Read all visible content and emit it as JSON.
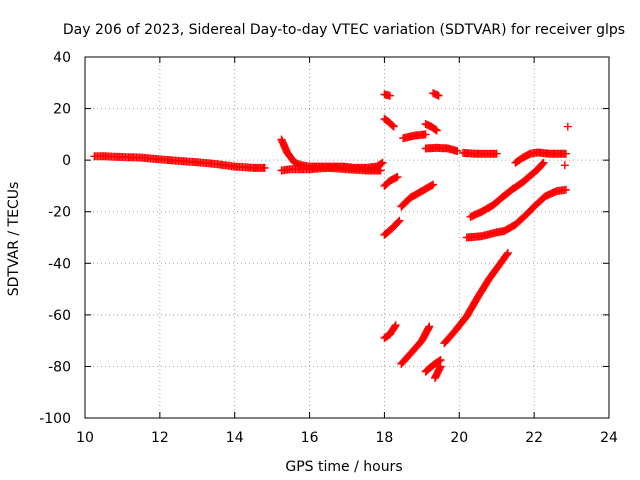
{
  "chart_data": {
    "type": "scatter",
    "title": "Day 206 of 2023, Sidereal Day-to-day VTEC variation (SDTVAR) for receiver glps",
    "xlabel": "GPS time / hours",
    "ylabel": "SDTVAR / TECUs",
    "xlim": [
      10,
      24
    ],
    "ylim": [
      -100,
      40
    ],
    "x_ticks": [
      10,
      12,
      14,
      16,
      18,
      20,
      22,
      24
    ],
    "y_ticks": [
      -100,
      -80,
      -60,
      -40,
      -20,
      0,
      20,
      40
    ],
    "x_tick_labels": [
      "10",
      "12",
      "14",
      "16",
      "18",
      "20",
      "22",
      "24"
    ],
    "y_tick_labels": [
      "-100",
      "-80",
      "-60",
      "-40",
      "-20",
      "0",
      "20",
      "40"
    ],
    "grid": true,
    "legend": "none",
    "marker": "plus",
    "color": "#ff0000",
    "series": [
      {
        "segments": [
          {
            "x": [
              10.25,
              10.5,
              11.0,
              11.5,
              12.0,
              12.5,
              13.0,
              13.5,
              14.0,
              14.5,
              14.8
            ],
            "y": [
              1.5,
              1.5,
              1.2,
              1.0,
              0.3,
              -0.3,
              -0.8,
              -1.5,
              -2.5,
              -3.0,
              -3.0
            ]
          },
          {
            "x": [
              15.25,
              15.4,
              15.6,
              15.8,
              16.0,
              16.3,
              16.6,
              16.9,
              17.2,
              17.5,
              17.8,
              17.95
            ],
            "y": [
              8.0,
              3.0,
              -1.0,
              -2.0,
              -2.5,
              -2.5,
              -2.5,
              -2.5,
              -3.0,
              -3.0,
              -2.5,
              -1.0
            ]
          },
          {
            "x": [
              15.25,
              15.5,
              16.0,
              16.5,
              17.0,
              17.5,
              17.9
            ],
            "y": [
              -4.0,
              -3.5,
              -3.5,
              -3.0,
              -3.5,
              -4.0,
              -4.0
            ]
          },
          {
            "x": [
              18.0,
              18.15
            ],
            "y": [
              25.5,
              25.0
            ]
          },
          {
            "x": [
              18.0,
              18.1,
              18.25
            ],
            "y": [
              16.0,
              15.0,
              13.0
            ]
          },
          {
            "x": [
              18.0,
              18.15,
              18.35
            ],
            "y": [
              -10.0,
              -8.0,
              -6.5
            ]
          },
          {
            "x": [
              18.0,
              18.2,
              18.4
            ],
            "y": [
              -29.0,
              -26.5,
              -23.5
            ]
          },
          {
            "x": [
              18.0,
              18.15,
              18.3
            ],
            "y": [
              -69.0,
              -67.5,
              -64.0
            ]
          },
          {
            "x": [
              18.45,
              18.7,
              19.0,
              19.3
            ],
            "y": [
              -18.0,
              -14.5,
              -12.0,
              -9.5
            ]
          },
          {
            "x": [
              18.45,
              18.7,
              19.0,
              19.2
            ],
            "y": [
              -79.0,
              -75.0,
              -70.0,
              -64.5
            ]
          },
          {
            "x": [
              18.5,
              18.8,
              19.1
            ],
            "y": [
              8.5,
              9.5,
              10.0
            ]
          },
          {
            "x": [
              19.1,
              19.25,
              19.4
            ],
            "y": [
              14.0,
              13.0,
              11.5
            ]
          },
          {
            "x": [
              19.3,
              19.45
            ],
            "y": [
              26.0,
              25.0
            ]
          },
          {
            "x": [
              19.1,
              19.4,
              19.7,
              19.95
            ],
            "y": [
              4.5,
              4.8,
              4.5,
              3.5
            ]
          },
          {
            "x": [
              20.1,
              20.4,
              20.8,
              21.0
            ],
            "y": [
              2.8,
              2.5,
              2.5,
              2.5
            ]
          },
          {
            "x": [
              19.1,
              19.3,
              19.5
            ],
            "y": [
              -82.0,
              -79.5,
              -77.5
            ]
          },
          {
            "x": [
              19.35,
              19.5
            ],
            "y": [
              -84.5,
              -80.0
            ]
          },
          {
            "x": [
              19.6,
              19.9,
              20.2,
              20.5,
              20.8,
              21.1,
              21.3
            ],
            "y": [
              -71.0,
              -66.0,
              -60.5,
              -53.0,
              -46.0,
              -40.0,
              -36.0
            ]
          },
          {
            "x": [
              20.3,
              20.6,
              20.9,
              21.1,
              21.4,
              21.7,
              21.9,
              22.1,
              22.25
            ],
            "y": [
              -22.0,
              -20.0,
              -17.5,
              -15.0,
              -11.5,
              -8.5,
              -6.0,
              -3.5,
              -1.0
            ]
          },
          {
            "x": [
              20.2,
              20.6,
              21.0,
              21.2,
              21.5,
              21.8,
              22.0,
              22.3,
              22.6,
              22.85
            ],
            "y": [
              -30.0,
              -29.5,
              -28.0,
              -27.5,
              -25.0,
              -21.0,
              -18.0,
              -14.0,
              -12.0,
              -11.5
            ]
          },
          {
            "x": [
              21.5,
              21.7,
              21.9,
              22.1,
              22.4,
              22.7,
              22.85
            ],
            "y": [
              -1.0,
              1.0,
              2.5,
              3.0,
              2.5,
              2.5,
              2.5
            ]
          },
          {
            "x": [
              22.82
            ],
            "y": [
              -2.0
            ]
          },
          {
            "x": [
              22.9
            ],
            "y": [
              13.0
            ]
          }
        ]
      }
    ]
  }
}
